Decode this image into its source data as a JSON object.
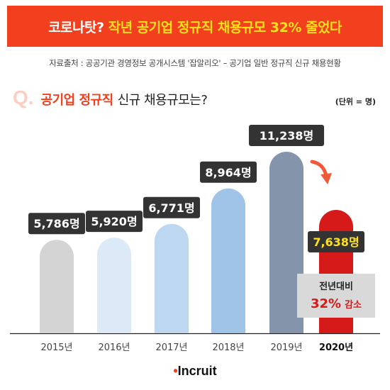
{
  "banner": {
    "part1": "코로나탓?",
    "part2": "작년 공기업 정규직 채용규모 32% 줄었다"
  },
  "source": "자료출처 : 공공기관 경영정보 공개시스템 '잡알리오' – 공기업 일반 정규직 신규 채용현황",
  "question": {
    "mark": "Q.",
    "highlight": "공기업 정규직",
    "rest": "신규 채용규모는?"
  },
  "unit_label": "(단위 = 명)",
  "callout": {
    "line1": "전년대비",
    "pct": "32%",
    "word": "감소"
  },
  "logo": {
    "dot": "•",
    "text": "Incruit"
  },
  "colors": {
    "accent": "#f2401f",
    "highlight_label": "#ffe11a",
    "label_box": "#333333"
  },
  "chart_data": {
    "type": "bar",
    "categories": [
      "2015년",
      "2016년",
      "2017년",
      "2018년",
      "2019년",
      "2020년"
    ],
    "values": [
      5786,
      5920,
      6771,
      8964,
      11238,
      7638
    ],
    "value_labels": [
      "5,786명",
      "5,920명",
      "6,771명",
      "8,964명",
      "11,238명",
      "7,638명"
    ],
    "bar_colors": [
      "#d4d4d4",
      "#dce9f6",
      "#bcd7ef",
      "#9fc4e7",
      "#8394ab",
      "#d61a1a"
    ],
    "highlight_index": 5,
    "title": "공기업 정규직 신규 채용규모는?",
    "xlabel": "",
    "ylabel": ""
  }
}
